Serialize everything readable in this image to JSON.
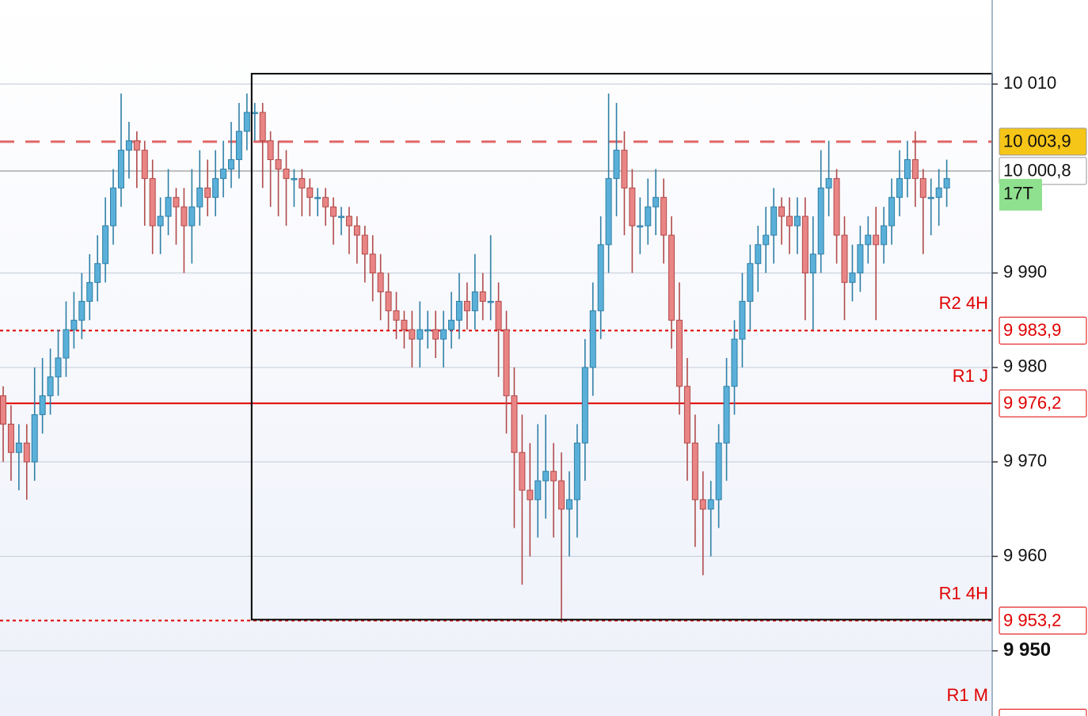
{
  "chart_data": {
    "type": "candlestick",
    "open": [
      9977,
      9974,
      9971,
      9972,
      9970,
      9975,
      9977,
      9979,
      9981,
      9984,
      9985,
      9987,
      9989,
      9991,
      9995,
      9999,
      10003,
      10004,
      10003,
      10000,
      9995,
      9996,
      9998,
      9997,
      9995,
      9997,
      9999,
      9998,
      10000,
      10001,
      10002,
      10005,
      10007,
      10007,
      10004,
      10002,
      10001,
      10000,
      10000,
      9999,
      9998,
      9998,
      9997,
      9996,
      9996,
      9995,
      9994,
      9992,
      9990,
      9988,
      9986,
      9985,
      9984,
      9983,
      9984,
      9984,
      9983,
      9984,
      9985,
      9987,
      9986,
      9988,
      9987,
      9987,
      9984,
      9977,
      9971,
      9967,
      9966,
      9968,
      9969,
      9968,
      9965,
      9966,
      9972,
      9980,
      9986,
      9993,
      10000,
      10003,
      9999,
      9995,
      9995,
      9997,
      9998,
      9994,
      9985,
      9978,
      9972,
      9966,
      9965,
      9966,
      9972,
      9978,
      9983,
      9987,
      9991,
      9993,
      9994,
      9997,
      9996,
      9995,
      9996,
      9990,
      9992,
      9999,
      10000,
      9994,
      9989,
      9990,
      9993,
      9994,
      9993,
      9995,
      9998,
      10000,
      10002,
      10000,
      9998,
      9998,
      9999
    ],
    "high": [
      9978,
      9976,
      9974,
      9974,
      9980,
      9981,
      9982,
      9984,
      9987,
      9988,
      9990,
      9992,
      9994,
      9998,
      10001,
      10009,
      10006,
      10005,
      10004,
      10002,
      9998,
      10001,
      9999,
      9999,
      10001,
      10003,
      10002,
      10003,
      10004,
      10006,
      10008,
      10009,
      10008,
      10008,
      10005,
      10004,
      10003,
      10001,
      10001,
      10000,
      9999,
      9999,
      9998,
      9997,
      9997,
      9996,
      9995,
      9994,
      9992,
      9990,
      9988,
      9986,
      9986,
      9987,
      9986,
      9986,
      9986,
      9988,
      9990,
      9989,
      9992,
      9990,
      9994,
      9989,
      9986,
      9980,
      9975,
      9972,
      9974,
      9975,
      9972,
      9971,
      9969,
      9974,
      9983,
      9989,
      9996,
      10009,
      10008,
      10005,
      10001,
      9998,
      10000,
      10001,
      10000,
      9996,
      9989,
      9981,
      9975,
      9969,
      9968,
      9974,
      9981,
      9985,
      9990,
      9993,
      9995,
      9997,
      9999,
      9998,
      9998,
      9998,
      9998,
      9996,
      10003,
      10004,
      10001,
      9996,
      9993,
      9995,
      9996,
      9997,
      9997,
      10000,
      10003,
      10004,
      10005,
      10001,
      10000,
      10001,
      10002
    ],
    "low": [
      9970,
      9968,
      9967,
      9966,
      9968,
      9973,
      9975,
      9977,
      9979,
      9982,
      9983,
      9985,
      9987,
      9989,
      9993,
      9997,
      10000,
      9999,
      9995,
      9992,
      9992,
      9994,
      9993,
      9990,
      9991,
      9995,
      9996,
      9996,
      9998,
      9999,
      10000,
      10003,
      10004,
      9999,
      9997,
      9996,
      9995,
      9997,
      9996,
      9996,
      9996,
      9995,
      9993,
      9994,
      9992,
      9991,
      9989,
      9987,
      9985,
      9984,
      9983,
      9982,
      9980,
      9980,
      9982,
      9981,
      9980,
      9982,
      9983,
      9984,
      9984,
      9985,
      9985,
      9979,
      9973,
      9963,
      9957,
      9960,
      9962,
      9964,
      9962,
      9953,
      9960,
      9962,
      9968,
      9977,
      9983,
      9990,
      9996,
      9994,
      9990,
      9992,
      9993,
      9994,
      9991,
      9982,
      9975,
      9968,
      9961,
      9958,
      9960,
      9963,
      9968,
      9975,
      9980,
      9984,
      9988,
      9990,
      9991,
      9993,
      9992,
      9992,
      9985,
      9984,
      9990,
      9996,
      9991,
      9985,
      9987,
      9988,
      9991,
      9985,
      9991,
      9993,
      9996,
      9998,
      9997,
      9992,
      9994,
      9995,
      9997
    ],
    "close": [
      9974,
      9971,
      9972,
      9970,
      9975,
      9977,
      9979,
      9981,
      9984,
      9985,
      9987,
      9989,
      9991,
      9995,
      9999,
      10003,
      10004,
      10003,
      10000,
      9995,
      9996,
      9998,
      9997,
      9995,
      9997,
      9999,
      9998,
      10000,
      10001,
      10002,
      10005,
      10007,
      10007,
      10004,
      10002,
      10001,
      10000,
      10000,
      9999,
      9998,
      9998,
      9997,
      9996,
      9996,
      9995,
      9994,
      9992,
      9990,
      9988,
      9986,
      9985,
      9984,
      9983,
      9984,
      9984,
      9983,
      9984,
      9985,
      9987,
      9986,
      9988,
      9987,
      9987,
      9984,
      9977,
      9971,
      9967,
      9966,
      9968,
      9969,
      9968,
      9965,
      9966,
      9972,
      9980,
      9986,
      9993,
      10000,
      10003,
      9999,
      9995,
      9995,
      9997,
      9998,
      9994,
      9985,
      9978,
      9972,
      9966,
      9965,
      9966,
      9972,
      9978,
      9983,
      9987,
      9991,
      9993,
      9994,
      9997,
      9996,
      9995,
      9996,
      9990,
      9992,
      9999,
      10000,
      9994,
      9989,
      9990,
      9993,
      9994,
      9993,
      9995,
      9998,
      10000,
      10002,
      10000,
      9998,
      9998,
      9999,
      10000
    ],
    "up_color": "#5ab0d8",
    "up_border": "#2f7fa6",
    "down_color": "#e98585",
    "down_border": "#b14a4a",
    "ylim": [
      9943.1,
      10018.9
    ],
    "yticks": [
      {
        "value": 10010,
        "label": "10 010"
      },
      {
        "value": 9990,
        "label": "9 990"
      },
      {
        "value": 9980,
        "label": "9 980"
      },
      {
        "value": 9970,
        "label": "9 970"
      },
      {
        "value": 9960,
        "label": "9 960"
      },
      {
        "value": 9950,
        "label": "9 950"
      }
    ],
    "grid": true,
    "box": {
      "start": 31.6,
      "top": 10011.1,
      "bottom": 9953.3
    },
    "levels": [
      {
        "value": 10003.9,
        "label": "10 003,9",
        "style": "dashed",
        "color": "#e06666",
        "badge": "#f5c518"
      },
      {
        "value": 10000.8,
        "label": "10 000,8",
        "style": "solid",
        "color": "#bcbcbc",
        "badge": "#ffffff",
        "timer": "17T"
      },
      {
        "value": 9983.9,
        "label": "9 983,9",
        "name": "R2 4H",
        "style": "dotted",
        "color": "#e00000",
        "badge": "#ffffff"
      },
      {
        "value": 9976.2,
        "label": "9 976,2",
        "name": "R1 J",
        "style": "solid",
        "color": "#e00000",
        "badge": "#ffffff"
      },
      {
        "value": 9953.2,
        "label": "9 953,2",
        "name": "R1 4H",
        "style": "dotted",
        "color": "#e00000",
        "badge": "#ffffff"
      },
      {
        "value": 9942.4,
        "name": "R1 M",
        "style": "dotted",
        "color": "#e00000",
        "badge": "#ffffff"
      }
    ]
  }
}
